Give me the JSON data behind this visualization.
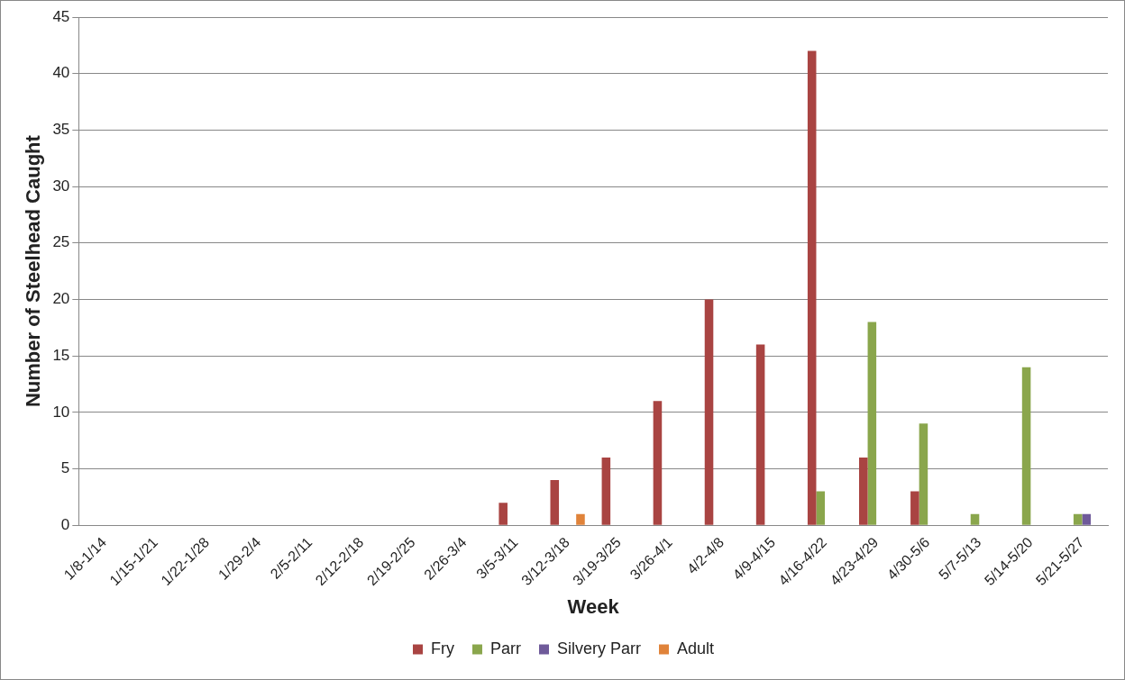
{
  "chart_data": {
    "type": "bar",
    "xlabel": "Week",
    "ylabel": "Number of Steelhead Caught",
    "categories": [
      "1/8-1/14",
      "1/15-1/21",
      "1/22-1/28",
      "1/29-2/4",
      "2/5-2/11",
      "2/12-2/18",
      "2/19-2/25",
      "2/26-3/4",
      "3/5-3/11",
      "3/12-3/18",
      "3/19-3/25",
      "3/26-4/1",
      "4/2-4/8",
      "4/9-4/15",
      "4/16-4/22",
      "4/23-4/29",
      "4/30-5/6",
      "5/7-5/13",
      "5/14-5/20",
      "5/21-5/27"
    ],
    "series": [
      {
        "name": "Fry",
        "color": "#a94442",
        "values": [
          0,
          0,
          0,
          0,
          0,
          0,
          0,
          0,
          2,
          4,
          6,
          11,
          20,
          16,
          42,
          6,
          3,
          0,
          0,
          0
        ]
      },
      {
        "name": "Parr",
        "color": "#8aa64c",
        "values": [
          0,
          0,
          0,
          0,
          0,
          0,
          0,
          0,
          0,
          0,
          0,
          0,
          0,
          0,
          3,
          18,
          9,
          1,
          14,
          1
        ]
      },
      {
        "name": "Silvery Parr",
        "color": "#6f5a9a",
        "values": [
          0,
          0,
          0,
          0,
          0,
          0,
          0,
          0,
          0,
          0,
          0,
          0,
          0,
          0,
          0,
          0,
          0,
          0,
          0,
          1
        ]
      },
      {
        "name": "Adult",
        "color": "#e0833a",
        "values": [
          0,
          0,
          0,
          0,
          0,
          0,
          0,
          0,
          0,
          1,
          0,
          0,
          0,
          0,
          0,
          0,
          0,
          0,
          0,
          0
        ]
      }
    ],
    "ylim": [
      0,
      45
    ],
    "yticks": [
      0,
      5,
      10,
      15,
      20,
      25,
      30,
      35,
      40,
      45
    ],
    "grid": "y",
    "legend": "bottom"
  }
}
